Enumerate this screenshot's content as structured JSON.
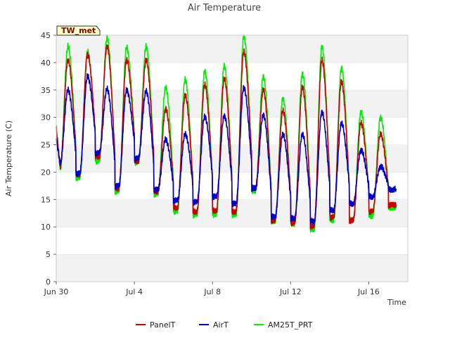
{
  "chart_data": {
    "type": "line",
    "title": "Air Temperature",
    "xlabel": "Time",
    "ylabel": "Air Temperature (C)",
    "station_label": "TW_met",
    "x_unit": "day index from Jun 30",
    "xlim": [
      0,
      18
    ],
    "ylim": [
      0,
      45
    ],
    "y_ticks": [
      0,
      5,
      10,
      15,
      20,
      25,
      30,
      35,
      40,
      45
    ],
    "x_ticks": [
      {
        "value": 0,
        "label": "Jun 30"
      },
      {
        "value": 4,
        "label": "Jul 4"
      },
      {
        "value": 8,
        "label": "Jul 8"
      },
      {
        "value": 12,
        "label": "Jul 12"
      },
      {
        "value": 16,
        "label": "Jul 16"
      }
    ],
    "grid": "horizontal bands",
    "legend_position": "bottom-center",
    "daily": {
      "day_start": 0,
      "day_end": 17.4,
      "peak_phase": 0.6,
      "AirT": {
        "min": [
          21.5,
          19.8,
          23.5,
          17.5,
          22.5,
          16.8,
          14.8,
          14.5,
          15.5,
          14.2,
          17.0,
          11.8,
          11.5,
          11.0,
          13.0,
          14.2,
          15.5,
          16.8
        ],
        "max": [
          35.0,
          37.5,
          35.2,
          35.0,
          34.8,
          26.0,
          27.0,
          30.2,
          30.3,
          35.5,
          30.5,
          27.0,
          27.0,
          31.0,
          29.0,
          24.0,
          21.0,
          17.0
        ]
      },
      "PanelT": {
        "min": [
          21.0,
          19.5,
          22.8,
          17.0,
          22.0,
          16.5,
          13.5,
          12.8,
          13.0,
          12.8,
          17.2,
          11.2,
          10.8,
          10.2,
          11.8,
          11.2,
          12.8,
          14.0
        ],
        "max": [
          40.5,
          41.5,
          43.0,
          40.5,
          40.5,
          31.5,
          34.0,
          36.0,
          37.0,
          42.0,
          35.0,
          31.2,
          35.5,
          40.5,
          36.5,
          29.0,
          27.0,
          14.2
        ]
      },
      "AM25T_PRT": {
        "min": [
          20.5,
          19.0,
          22.0,
          16.5,
          21.8,
          16.0,
          12.8,
          12.2,
          12.2,
          12.2,
          16.5,
          11.0,
          10.5,
          9.5,
          11.2,
          11.2,
          12.0,
          13.5
        ],
        "max": [
          43.0,
          42.0,
          44.5,
          42.8,
          43.0,
          35.5,
          37.0,
          38.5,
          39.5,
          44.8,
          37.5,
          33.5,
          38.0,
          43.0,
          39.0,
          31.0,
          30.0,
          13.5
        ]
      }
    },
    "series": [
      {
        "name": "PanelT",
        "color": "#cc0000"
      },
      {
        "name": "AirT",
        "color": "#0000cc"
      },
      {
        "name": "AM25T_PRT",
        "color": "#00ee00"
      }
    ]
  }
}
